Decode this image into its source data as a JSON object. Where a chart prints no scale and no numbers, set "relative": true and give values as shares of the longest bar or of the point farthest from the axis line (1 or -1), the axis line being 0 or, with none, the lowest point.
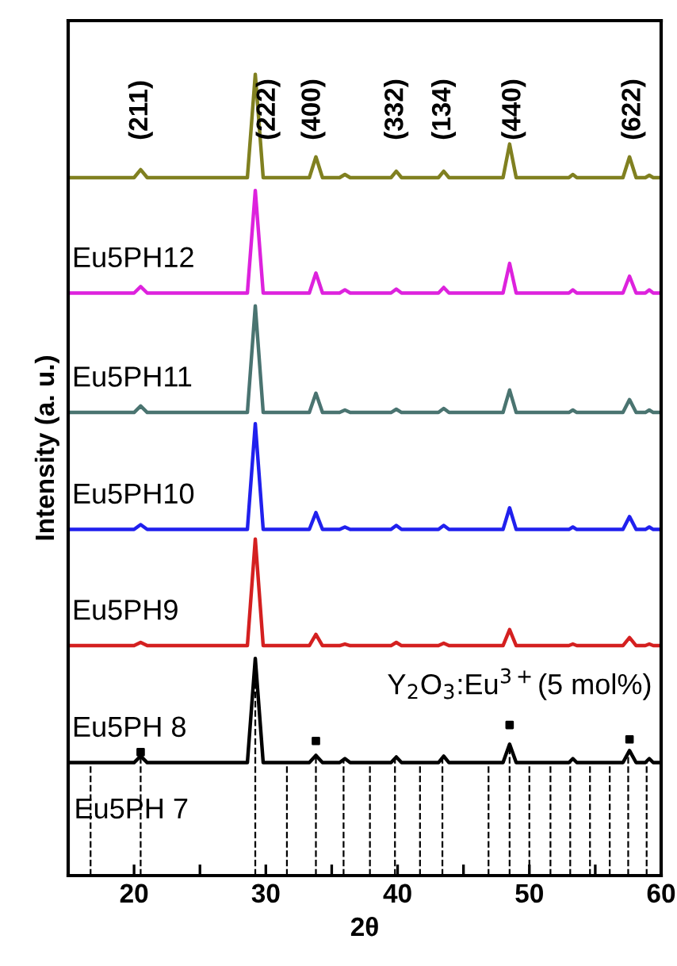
{
  "chart_data": {
    "type": "line",
    "relative": true,
    "xlabel": "2θ",
    "ylabel": "Intensity (a. u.)",
    "xlim": [
      15,
      60
    ],
    "xticks": [
      {
        "value": 15,
        "label": null
      },
      20,
      {
        "value": 25,
        "label": null
      },
      30,
      {
        "value": 35,
        "label": null
      },
      40,
      {
        "value": 45,
        "label": null
      },
      50,
      {
        "value": 55,
        "label": null
      },
      60
    ],
    "x": [
      15,
      20,
      20.5,
      21,
      28.6,
      29.2,
      29.8,
      33.3,
      33.8,
      34.3,
      35.6,
      36,
      36.4,
      39.5,
      39.9,
      40.3,
      43.1,
      43.5,
      43.9,
      48,
      48.5,
      49,
      53,
      53.3,
      53.6,
      57.1,
      57.6,
      58.1,
      58.8,
      59.1,
      59.4,
      60
    ],
    "series": [
      {
        "color": "#808020",
        "values": [
          0.871,
          0.871,
          0.881,
          0.871,
          0.871,
          1.0,
          0.871,
          0.871,
          0.897,
          0.871,
          0.871,
          0.875,
          0.871,
          0.871,
          0.879,
          0.871,
          0.871,
          0.879,
          0.871,
          0.871,
          0.913,
          0.871,
          0.871,
          0.875,
          0.871,
          0.871,
          0.897,
          0.871,
          0.871,
          0.874,
          0.871,
          0.871
        ]
      },
      {
        "name": "Eu5PH12",
        "color": "#dd22dd",
        "values": [
          0.727,
          0.727,
          0.735,
          0.727,
          0.727,
          0.855,
          0.727,
          0.727,
          0.752,
          0.727,
          0.727,
          0.731,
          0.727,
          0.727,
          0.732,
          0.727,
          0.727,
          0.734,
          0.727,
          0.727,
          0.764,
          0.727,
          0.727,
          0.731,
          0.727,
          0.727,
          0.748,
          0.727,
          0.727,
          0.731,
          0.727,
          0.727
        ]
      },
      {
        "name": "Eu5PH11",
        "color": "#4a7470",
        "values": [
          0.578,
          0.578,
          0.586,
          0.578,
          0.578,
          0.711,
          0.578,
          0.578,
          0.602,
          0.578,
          0.578,
          0.581,
          0.578,
          0.578,
          0.582,
          0.578,
          0.578,
          0.583,
          0.578,
          0.578,
          0.606,
          0.578,
          0.578,
          0.581,
          0.578,
          0.578,
          0.594,
          0.578,
          0.578,
          0.581,
          0.578,
          0.578
        ]
      },
      {
        "name": "Eu5PH10",
        "color": "#2020ee",
        "values": [
          0.432,
          0.432,
          0.438,
          0.432,
          0.432,
          0.564,
          0.432,
          0.432,
          0.453,
          0.432,
          0.432,
          0.435,
          0.432,
          0.432,
          0.437,
          0.432,
          0.432,
          0.437,
          0.432,
          0.432,
          0.459,
          0.432,
          0.432,
          0.435,
          0.432,
          0.432,
          0.448,
          0.432,
          0.432,
          0.435,
          0.432,
          0.432
        ]
      },
      {
        "name": "Eu5PH9",
        "color": "#d42020",
        "values": [
          0.287,
          0.287,
          0.291,
          0.287,
          0.287,
          0.42,
          0.287,
          0.287,
          0.301,
          0.287,
          0.287,
          0.289,
          0.287,
          0.287,
          0.291,
          0.287,
          0.287,
          0.29,
          0.287,
          0.287,
          0.307,
          0.287,
          0.287,
          0.289,
          0.287,
          0.287,
          0.297,
          0.287,
          0.287,
          0.289,
          0.287,
          0.287
        ]
      },
      {
        "name": "Eu5PH 8",
        "color": "#000000",
        "values": [
          0.141,
          0.141,
          0.149,
          0.141,
          0.141,
          0.271,
          0.141,
          0.141,
          0.15,
          0.141,
          0.141,
          0.146,
          0.141,
          0.141,
          0.148,
          0.141,
          0.141,
          0.149,
          0.141,
          0.141,
          0.164,
          0.141,
          0.141,
          0.146,
          0.141,
          0.141,
          0.156,
          0.141,
          0.141,
          0.146,
          0.141,
          0.141
        ]
      },
      {
        "type": "scatter",
        "marker": "square",
        "color": "#000000",
        "x": [
          20.5,
          33.8,
          48.5,
          57.6
        ],
        "values": [
          0.154,
          0.168,
          0.188,
          0.17
        ]
      }
    ],
    "ref_lines": [
      {
        "axis": "x",
        "value": 16.7,
        "line_style": "dashed"
      },
      {
        "axis": "x",
        "value": 20.5,
        "line_style": "dashed"
      },
      {
        "axis": "x",
        "value": 29.2,
        "line_style": "dashed"
      },
      {
        "axis": "x",
        "value": 31.6,
        "line_style": "dashed"
      },
      {
        "axis": "x",
        "value": 33.8,
        "line_style": "dashed"
      },
      {
        "axis": "x",
        "value": 35.9,
        "line_style": "dashed"
      },
      {
        "axis": "x",
        "value": 37.9,
        "line_style": "dashed"
      },
      {
        "axis": "x",
        "value": 39.8,
        "line_style": "dashed"
      },
      {
        "axis": "x",
        "value": 41.7,
        "line_style": "dashed"
      },
      {
        "axis": "x",
        "value": 43.4,
        "line_style": "dashed"
      },
      {
        "axis": "x",
        "value": 46.9,
        "line_style": "dashed"
      },
      {
        "axis": "x",
        "value": 48.5,
        "line_style": "dashed"
      },
      {
        "axis": "x",
        "value": 50.0,
        "line_style": "dashed"
      },
      {
        "axis": "x",
        "value": 51.6,
        "line_style": "dashed"
      },
      {
        "axis": "x",
        "value": 53.1,
        "line_style": "dashed"
      },
      {
        "axis": "x",
        "value": 54.6,
        "line_style": "dashed"
      },
      {
        "axis": "x",
        "value": 56.1,
        "line_style": "dashed"
      },
      {
        "axis": "x",
        "value": 57.5,
        "line_style": "dashed"
      },
      {
        "axis": "x",
        "value": 58.9,
        "line_style": "dashed"
      }
    ],
    "annotations": [
      "(211)",
      "(222)",
      "(400)",
      "(332)",
      "(134)",
      "(440)",
      "(622)",
      "Y$_{2}$O$_{3}$:Eu$^{3+}$(5 mol%)",
      "Eu5PH 7"
    ],
    "grid": false,
    "legend": false,
    "line_style": "solid",
    "marker": "none"
  }
}
